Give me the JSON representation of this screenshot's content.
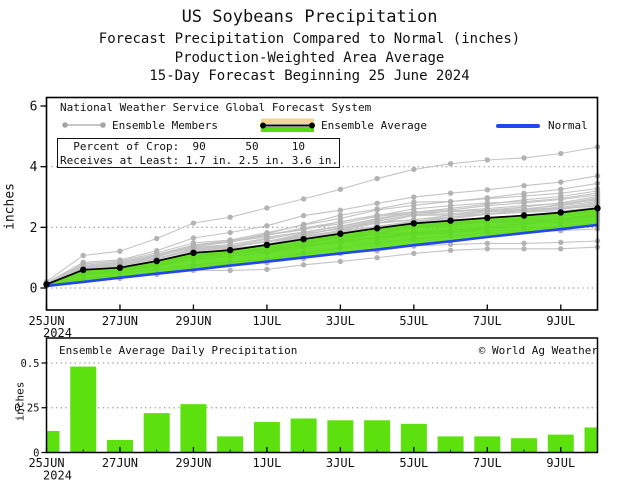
{
  "title": {
    "line1": "US Soybeans Precipitation",
    "line2": "Forecast Precipitation Compared to Normal (inches)",
    "line3": "Production-Weighted Area Average",
    "line4": "15-Day Forecast Beginning 25 June 2024"
  },
  "legend": {
    "header": "National Weather Service Global Forecast System",
    "members_label": "Ensemble Members",
    "average_label": "Ensemble Average",
    "normal_label": "Normal"
  },
  "crop_box": {
    "line1": "  Percent of Crop:  90      50     10",
    "line2": "Receives at Least: 1.7 in. 2.5 in. 3.6 in."
  },
  "top_axis": {
    "ylabel": "inches"
  },
  "bottom_axis": {
    "ylabel": "inches"
  },
  "bottom_chart": {
    "title": "Ensemble Average Daily Precipitation",
    "credit": "© World Ag Weather"
  },
  "colors": {
    "green": "#55dd11",
    "bar_green": "#5ce00e",
    "tan": "#f2d59b",
    "normal_blue": "#2347ee",
    "member_line": "#c4c4c4",
    "member_marker": "#b0b0b0",
    "grid": "#9a9a9a",
    "frame": "#000000"
  },
  "chart_data": [
    {
      "type": "line",
      "title": "Forecast cumulative precipitation compared to normal (inches)",
      "x": [
        "25JUN",
        "26JUN",
        "27JUN",
        "28JUN",
        "29JUN",
        "30JUN",
        "1JUL",
        "2JUL",
        "3JUL",
        "4JUL",
        "5JUL",
        "6JUL",
        "7JUL",
        "8JUL",
        "9JUL",
        "10JUL"
      ],
      "xticks": [
        {
          "day": 0,
          "label": "25JUN",
          "sublabel": "2024"
        },
        {
          "day": 2,
          "label": "27JUN"
        },
        {
          "day": 4,
          "label": "29JUN"
        },
        {
          "day": 6,
          "label": "1JUL"
        },
        {
          "day": 8,
          "label": "3JUL"
        },
        {
          "day": 10,
          "label": "5JUL"
        },
        {
          "day": 12,
          "label": "7JUL"
        },
        {
          "day": 14,
          "label": "9JUL"
        }
      ],
      "ylabel": "inches",
      "ylim": [
        -0.7,
        6.25
      ],
      "yticks": [
        0,
        2,
        4,
        6
      ],
      "grid_values": [
        0,
        2,
        4
      ],
      "legend_position": "top-left inside",
      "series": [
        {
          "name": "Ensemble Average",
          "color": "#000000",
          "values": [
            0.12,
            0.6,
            0.67,
            0.89,
            1.16,
            1.25,
            1.42,
            1.61,
            1.79,
            1.97,
            2.13,
            2.22,
            2.31,
            2.39,
            2.49,
            2.63
          ]
        },
        {
          "name": "Normal",
          "color": "#2347ee",
          "values": [
            0.07,
            0.2,
            0.34,
            0.47,
            0.6,
            0.74,
            0.87,
            1.01,
            1.14,
            1.27,
            1.41,
            1.54,
            1.68,
            1.81,
            1.94,
            2.08
          ]
        }
      ],
      "band": {
        "between": [
          "Normal",
          "Ensemble Average"
        ],
        "color_above_normal": "#55dd11",
        "color_below_normal": "#f2d59b"
      },
      "ensemble_members": {
        "count": 30,
        "color": "#c4c4c4",
        "end_values": [
          4.65,
          3.7,
          3.45,
          3.28,
          3.2,
          3.13,
          3.07,
          3.02,
          2.97,
          2.93,
          2.89,
          2.85,
          2.81,
          2.77,
          2.73,
          2.69,
          2.65,
          2.61,
          2.57,
          2.52,
          2.47,
          2.42,
          2.36,
          2.3,
          2.24,
          2.16,
          2.06,
          1.95,
          1.55,
          1.35
        ]
      }
    },
    {
      "type": "bar",
      "title": "Ensemble Average Daily Precipitation",
      "x": [
        "25JUN",
        "26JUN",
        "27JUN",
        "28JUN",
        "29JUN",
        "30JUN",
        "1JUL",
        "2JUL",
        "3JUL",
        "4JUL",
        "5JUL",
        "6JUL",
        "7JUL",
        "8JUL",
        "9JUL",
        "10JUL"
      ],
      "values": [
        0.12,
        0.48,
        0.07,
        0.22,
        0.27,
        0.09,
        0.17,
        0.19,
        0.18,
        0.18,
        0.16,
        0.09,
        0.09,
        0.08,
        0.1,
        0.14
      ],
      "bar_color": "#5ce00e",
      "ylabel": "inches",
      "ylim": [
        0,
        0.64
      ],
      "yticks": [
        0,
        0.25,
        0.5
      ],
      "ytick_labels": [
        "0",
        "0.25",
        "0.5"
      ],
      "grid_values": [
        0.25,
        0.5
      ],
      "xticks": [
        {
          "day": 0,
          "label": "25JUN",
          "sublabel": "2024"
        },
        {
          "day": 2,
          "label": "27JUN"
        },
        {
          "day": 4,
          "label": "29JUN"
        },
        {
          "day": 6,
          "label": "1JUL"
        },
        {
          "day": 8,
          "label": "3JUL"
        },
        {
          "day": 10,
          "label": "5JUL"
        },
        {
          "day": 12,
          "label": "7JUL"
        },
        {
          "day": 14,
          "label": "9JUL"
        }
      ]
    }
  ]
}
